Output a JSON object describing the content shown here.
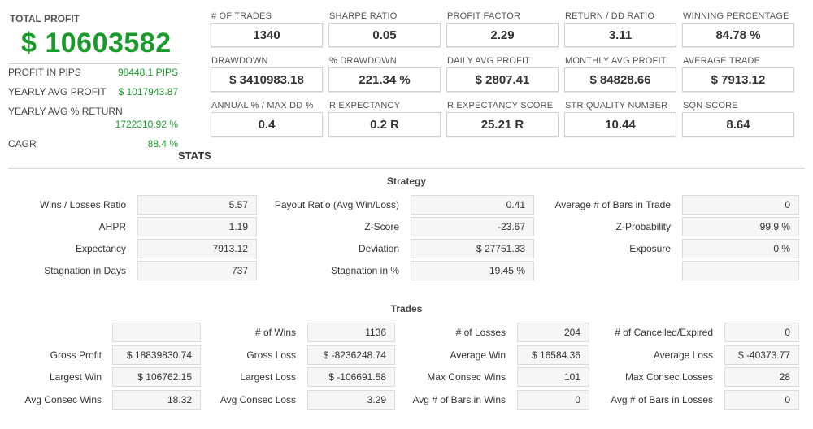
{
  "summary": {
    "total_label": "TOTAL PROFIT",
    "total_value": "$ 10603582",
    "rows": [
      {
        "label": "PROFIT IN PIPS",
        "value": "98448.1 PIPS"
      },
      {
        "label": "YEARLY AVG PROFIT",
        "value": "$ 1017943.87"
      },
      {
        "label": "YEARLY AVG % RETURN",
        "value": "1722310.92 %"
      },
      {
        "label": "CAGR",
        "value": "88.4 %"
      }
    ]
  },
  "metrics": [
    {
      "label": "# OF TRADES",
      "value": "1340"
    },
    {
      "label": "SHARPE RATIO",
      "value": "0.05"
    },
    {
      "label": "PROFIT FACTOR",
      "value": "2.29"
    },
    {
      "label": "RETURN / DD RATIO",
      "value": "3.11"
    },
    {
      "label": "WINNING PERCENTAGE",
      "value": "84.78 %"
    },
    {
      "label": "DRAWDOWN",
      "value": "$ 3410983.18"
    },
    {
      "label": "% DRAWDOWN",
      "value": "221.34 %"
    },
    {
      "label": "DAILY AVG PROFIT",
      "value": "$ 2807.41"
    },
    {
      "label": "MONTHLY AVG PROFIT",
      "value": "$ 84828.66"
    },
    {
      "label": "AVERAGE TRADE",
      "value": "$ 7913.12"
    },
    {
      "label": "ANNUAL % / MAX DD %",
      "value": "0.4"
    },
    {
      "label": "R EXPECTANCY",
      "value": "0.2 R"
    },
    {
      "label": "R EXPECTANCY SCORE",
      "value": "25.21 R"
    },
    {
      "label": "STR QUALITY NUMBER",
      "value": "10.44"
    },
    {
      "label": "SQN SCORE",
      "value": "8.64"
    }
  ],
  "stats_title": "STATS",
  "strategy": {
    "title": "Strategy",
    "rows": [
      [
        {
          "label": "Wins / Losses Ratio",
          "value": "5.57"
        },
        {
          "label": "Payout Ratio (Avg Win/Loss)",
          "value": "0.41"
        },
        {
          "label": "Average # of Bars in Trade",
          "value": "0"
        }
      ],
      [
        {
          "label": "AHPR",
          "value": "1.19"
        },
        {
          "label": "Z-Score",
          "value": "-23.67"
        },
        {
          "label": "Z-Probability",
          "value": "99.9 %"
        }
      ],
      [
        {
          "label": "Expectancy",
          "value": "7913.12"
        },
        {
          "label": "Deviation",
          "value": "$ 27751.33"
        },
        {
          "label": "Exposure",
          "value": "0 %"
        }
      ],
      [
        {
          "label": "Stagnation in Days",
          "value": "737"
        },
        {
          "label": "Stagnation in %",
          "value": "19.45 %"
        },
        {
          "label": "",
          "value": ""
        }
      ]
    ]
  },
  "trades": {
    "title": "Trades",
    "rows": [
      [
        {
          "label": "",
          "value": ""
        },
        {
          "label": "# of Wins",
          "value": "1136"
        },
        {
          "label": "# of Losses",
          "value": "204"
        },
        {
          "label": "# of Cancelled/Expired",
          "value": "0"
        }
      ],
      [
        {
          "label": "Gross Profit",
          "value": "$ 18839830.74"
        },
        {
          "label": "Gross Loss",
          "value": "$ -8236248.74"
        },
        {
          "label": "Average Win",
          "value": "$ 16584.36"
        },
        {
          "label": "Average Loss",
          "value": "$ -40373.77"
        }
      ],
      [
        {
          "label": "Largest Win",
          "value": "$ 106762.15"
        },
        {
          "label": "Largest Loss",
          "value": "$ -106691.58"
        },
        {
          "label": "Max Consec Wins",
          "value": "101"
        },
        {
          "label": "Max Consec Losses",
          "value": "28"
        }
      ],
      [
        {
          "label": "Avg Consec Wins",
          "value": "18.32"
        },
        {
          "label": "Avg Consec Loss",
          "value": "3.29"
        },
        {
          "label": "Avg # of Bars in Wins",
          "value": "0"
        },
        {
          "label": "Avg # of Bars in Losses",
          "value": "0"
        }
      ]
    ]
  }
}
